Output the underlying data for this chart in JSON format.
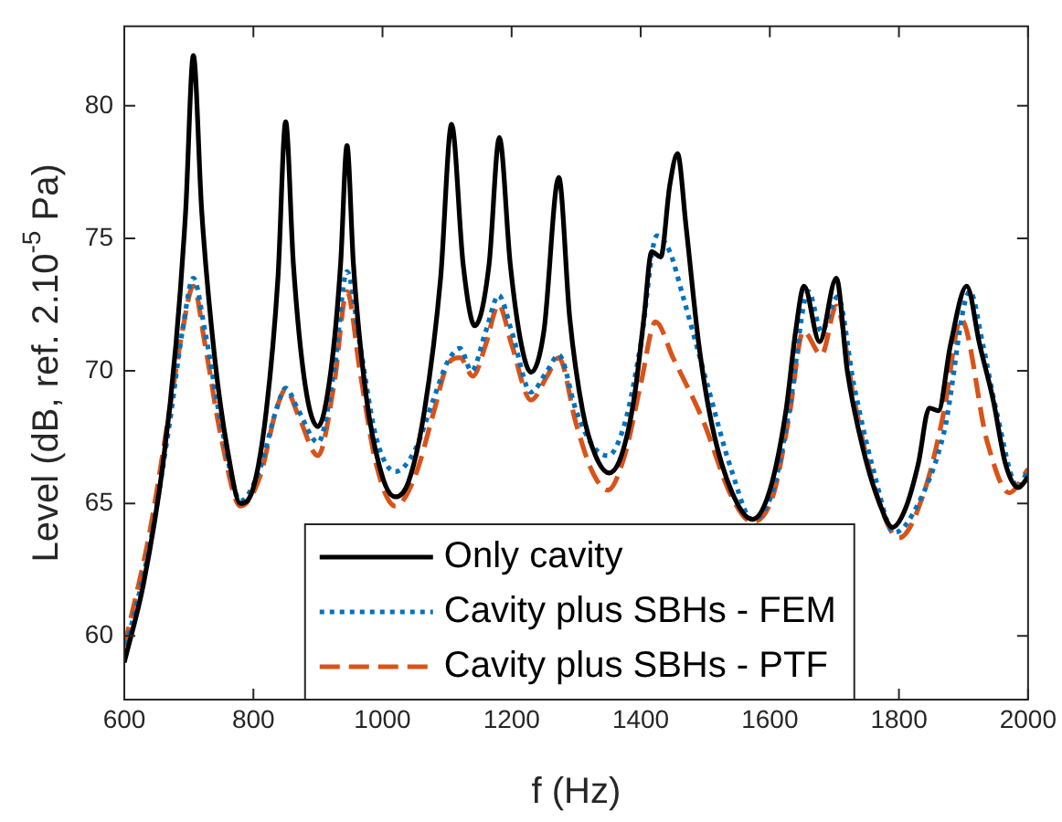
{
  "chart_data": {
    "type": "line",
    "xlabel": "f (Hz)",
    "ylabel": "Level (dB, ref. 2.10$^{-5}$ Pa)",
    "xlim": [
      600,
      2000
    ],
    "xticks": [
      600,
      800,
      1000,
      1200,
      1400,
      1600,
      1800,
      2000
    ],
    "ylim": [
      57.6,
      83
    ],
    "yticks": [
      60,
      65,
      70,
      75,
      80
    ],
    "grid": false,
    "legend": "bottom",
    "marker": "none",
    "series": [
      {
        "name": "Only cavity",
        "color": "#000000",
        "line_style": "solid",
        "x": [
          600,
          630,
          660,
          680,
          695,
          707,
          720,
          740,
          760,
          780,
          800,
          820,
          838,
          850,
          862,
          880,
          900,
          920,
          935,
          945,
          955,
          975,
          1000,
          1020,
          1040,
          1065,
          1090,
          1107,
          1125,
          1143,
          1165,
          1181,
          1198,
          1215,
          1230,
          1250,
          1273,
          1290,
          1310,
          1330,
          1351,
          1370,
          1390,
          1405,
          1417,
          1431,
          1445,
          1457,
          1470,
          1490,
          1510,
          1540,
          1573,
          1600,
          1625,
          1640,
          1653,
          1677,
          1703,
          1720,
          1745,
          1770,
          1790,
          1810,
          1830,
          1847,
          1861,
          1880,
          1905,
          1925,
          1946,
          1965,
          1985,
          2000
        ],
        "values": [
          59.0,
          62.0,
          66.5,
          71,
          76,
          81.9,
          76,
          70.5,
          67,
          65.0,
          65.6,
          68.5,
          73.5,
          79.4,
          74,
          69.5,
          67.9,
          70,
          74,
          78.5,
          74,
          69,
          66,
          65.25,
          65.8,
          68.5,
          73.5,
          79.3,
          74,
          71.7,
          74,
          78.8,
          74,
          71,
          69.95,
          71.5,
          77.3,
          72,
          68.5,
          66.8,
          66.15,
          66.8,
          69,
          72,
          74.5,
          74.3,
          77,
          78.2,
          75.5,
          71,
          68,
          65.5,
          64.4,
          65.5,
          68.5,
          71.5,
          73.2,
          71.1,
          73.5,
          70,
          67,
          65,
          64.1,
          64.8,
          66.5,
          68.6,
          68.5,
          71,
          73.2,
          71,
          68.9,
          66.5,
          65.6,
          66.0
        ]
      },
      {
        "name": "Cavity plus SBHs - FEM",
        "color": "#0072bd",
        "line_style": "dotted",
        "x": [
          600,
          640,
          670,
          690,
          707,
          725,
          750,
          780,
          810,
          835,
          850,
          870,
          900,
          925,
          945,
          965,
          990,
          1020,
          1050,
          1080,
          1100,
          1120,
          1138,
          1160,
          1180,
          1200,
          1230,
          1255,
          1273,
          1300,
          1325,
          1349,
          1375,
          1400,
          1425,
          1445,
          1465,
          1503,
          1540,
          1573,
          1605,
          1630,
          1660,
          1680,
          1705,
          1730,
          1760,
          1793,
          1830,
          1870,
          1910,
          1930,
          1950,
          1985,
          2000
        ],
        "values": [
          59.3,
          63.5,
          68,
          71.5,
          73.5,
          71.5,
          68,
          65.1,
          66.3,
          68.5,
          69.35,
          68.5,
          67.3,
          70,
          73.75,
          71,
          67.5,
          66.2,
          67,
          69,
          70.3,
          70.85,
          70.0,
          71.5,
          72.85,
          71.5,
          69.2,
          70,
          70.6,
          68.5,
          67.2,
          66.8,
          68,
          71,
          75.1,
          74.5,
          72.85,
          69.5,
          66.3,
          64.4,
          65.5,
          68.5,
          73.0,
          71.5,
          72.8,
          69.5,
          66.3,
          63.9,
          65,
          67.7,
          73.0,
          71,
          68.6,
          65.6,
          66.3
        ]
      },
      {
        "name": "Cavity plus SBHs - PTF",
        "color": "#d95319",
        "line_style": "dashed",
        "x": [
          600,
          640,
          670,
          690,
          707,
          725,
          750,
          780,
          810,
          835,
          850,
          870,
          900,
          925,
          945,
          965,
          990,
          1020,
          1050,
          1080,
          1100,
          1120,
          1140,
          1160,
          1180,
          1200,
          1230,
          1255,
          1273,
          1300,
          1325,
          1349,
          1375,
          1400,
          1423,
          1450,
          1497,
          1540,
          1573,
          1605,
          1630,
          1652,
          1680,
          1703,
          1730,
          1760,
          1800,
          1840,
          1870,
          1896,
          1937,
          1971,
          2000
        ],
        "values": [
          59.6,
          64,
          68.5,
          71.5,
          73.2,
          71,
          67.5,
          64.9,
          66,
          68.5,
          69.3,
          68.3,
          66.8,
          69.5,
          73.0,
          70,
          66.5,
          64.9,
          66,
          68.5,
          70.2,
          70.5,
          69.8,
          71,
          72.5,
          71,
          68.9,
          69.8,
          70.5,
          68,
          66.2,
          65.5,
          66.8,
          69.5,
          71.85,
          70.5,
          68.1,
          65.3,
          64.3,
          65.3,
          68.3,
          71.5,
          70.6,
          72.45,
          69,
          65.8,
          63.7,
          65.5,
          68.5,
          71.95,
          67.3,
          65.4,
          66.3
        ]
      }
    ]
  }
}
